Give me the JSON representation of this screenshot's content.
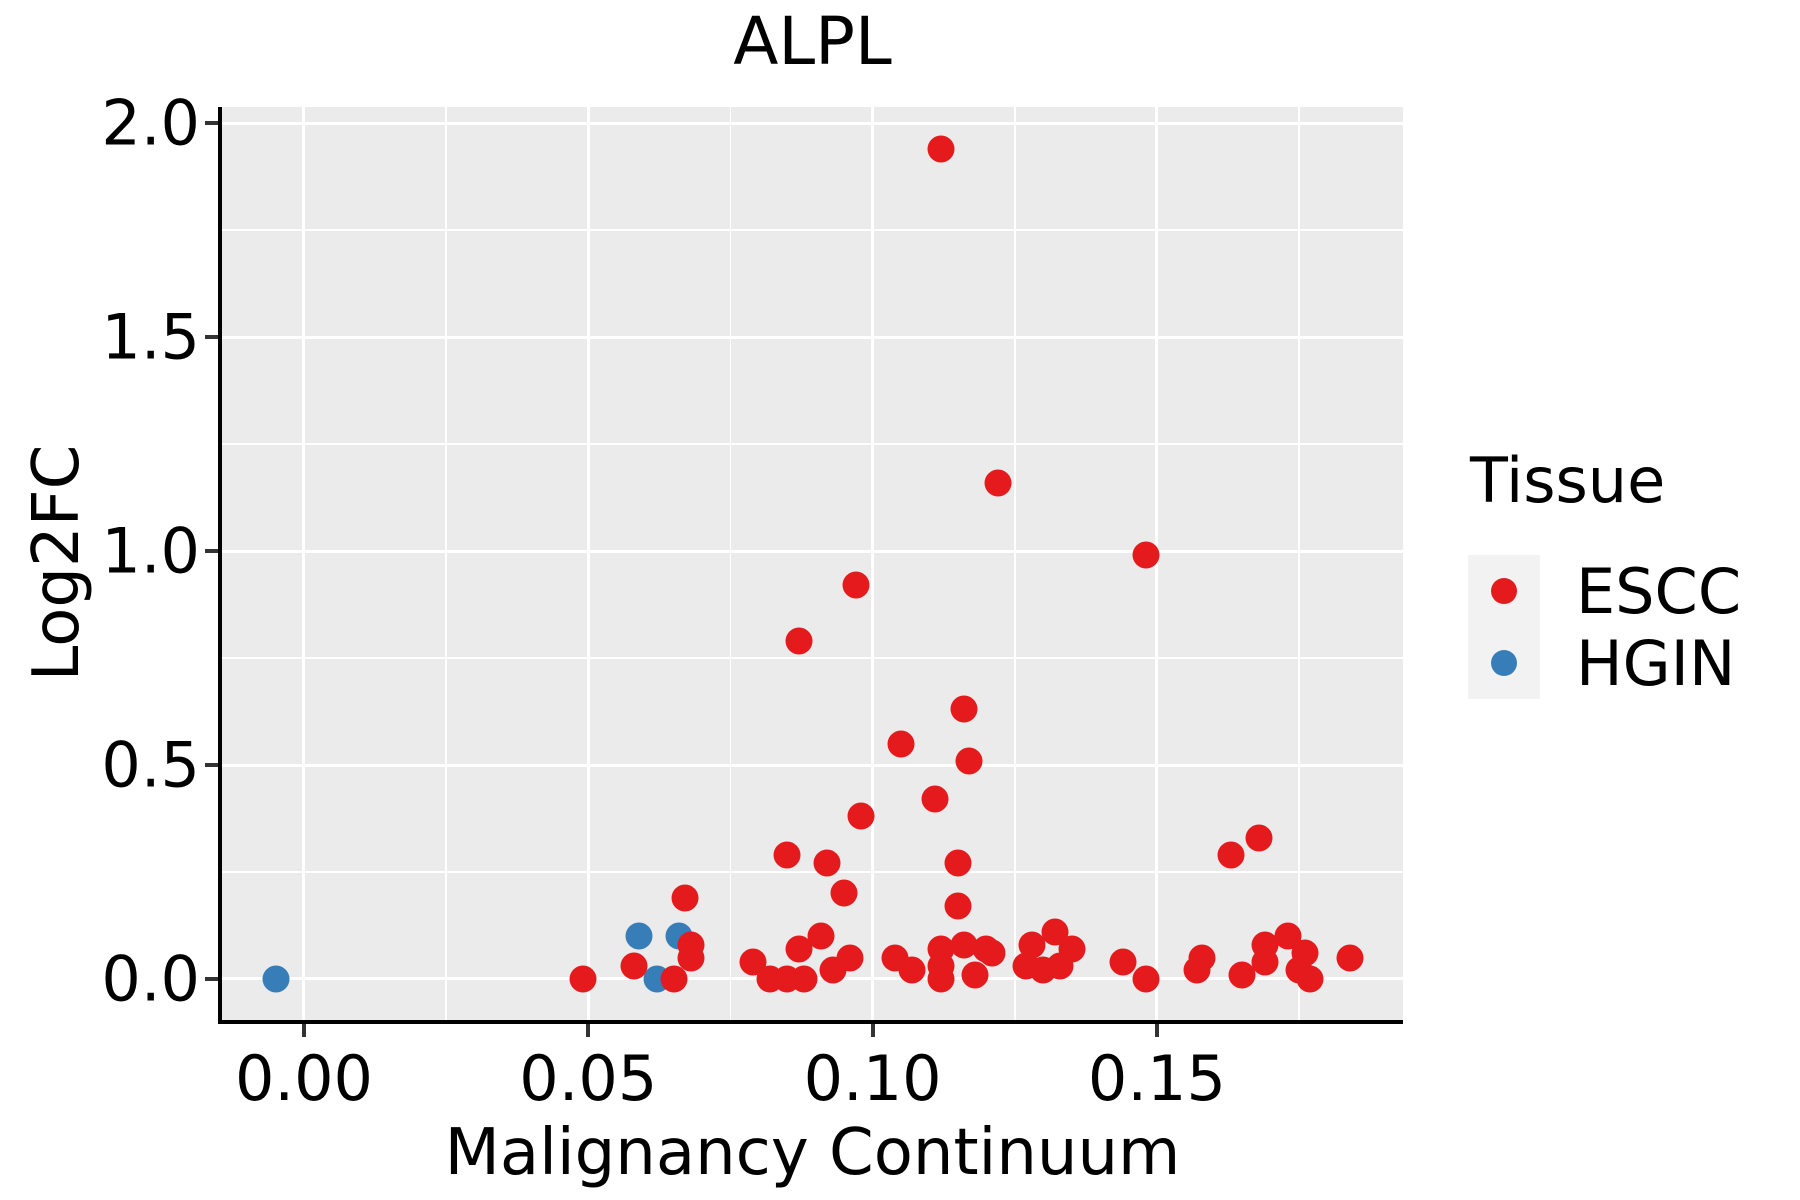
{
  "title": "ALPL",
  "legend": {
    "title": "Tissue",
    "entries": [
      {
        "label": "ESCC",
        "color": "#E41A1C"
      },
      {
        "label": "HGIN",
        "color": "#377EB8"
      }
    ]
  },
  "colors": {
    "escc_red": "#E41A1C",
    "hgin_blue": "#377EB8",
    "panel_background": "#EBEBEB",
    "gridline": "#FFFFFF",
    "axis": "#000000",
    "legend_key_background": "#F2F2F2"
  },
  "chart_data": {
    "type": "scatter",
    "title": "ALPL",
    "xlabel": "Malignancy Continuum",
    "ylabel": "Log2FC",
    "grid": true,
    "legend_position": "right",
    "xlim": [
      -0.01442,
      0.19328
    ],
    "ylim": [
      -0.0958,
      2.0374
    ],
    "x_ticks": [
      0.0,
      0.05,
      0.1,
      0.15
    ],
    "x_tick_labels": [
      "0.00",
      "0.05",
      "0.10",
      "0.15"
    ],
    "y_ticks": [
      0.0,
      0.5,
      1.0,
      1.5,
      2.0
    ],
    "y_tick_labels": [
      "0.0",
      "0.5",
      "1.0",
      "1.5",
      "2.0"
    ],
    "x_minor_ticks": [
      0.025,
      0.075,
      0.125,
      0.175
    ],
    "y_minor_ticks": [
      0.25,
      0.75,
      1.25,
      1.75
    ],
    "series": [
      {
        "name": "ESCC",
        "color": "#E41A1C",
        "points": [
          [
            0.049,
            0.0
          ],
          [
            0.058,
            0.03
          ],
          [
            0.065,
            0.0
          ],
          [
            0.067,
            0.19
          ],
          [
            0.068,
            0.08
          ],
          [
            0.068,
            0.05
          ],
          [
            0.079,
            0.04
          ],
          [
            0.082,
            0.0
          ],
          [
            0.085,
            0.0
          ],
          [
            0.085,
            0.29
          ],
          [
            0.087,
            0.07
          ],
          [
            0.087,
            0.79
          ],
          [
            0.088,
            0.0
          ],
          [
            0.091,
            0.1
          ],
          [
            0.092,
            0.27
          ],
          [
            0.093,
            0.02
          ],
          [
            0.095,
            0.2
          ],
          [
            0.096,
            0.05
          ],
          [
            0.097,
            0.92
          ],
          [
            0.098,
            0.38
          ],
          [
            0.104,
            0.05
          ],
          [
            0.105,
            0.55
          ],
          [
            0.107,
            0.02
          ],
          [
            0.111,
            0.42
          ],
          [
            0.112,
            1.94
          ],
          [
            0.112,
            0.07
          ],
          [
            0.112,
            0.03
          ],
          [
            0.112,
            0.0
          ],
          [
            0.115,
            0.17
          ],
          [
            0.115,
            0.27
          ],
          [
            0.116,
            0.63
          ],
          [
            0.116,
            0.08
          ],
          [
            0.117,
            0.51
          ],
          [
            0.118,
            0.01
          ],
          [
            0.12,
            0.07
          ],
          [
            0.121,
            0.06
          ],
          [
            0.122,
            1.16
          ],
          [
            0.127,
            0.03
          ],
          [
            0.128,
            0.08
          ],
          [
            0.13,
            0.02
          ],
          [
            0.132,
            0.11
          ],
          [
            0.133,
            0.03
          ],
          [
            0.135,
            0.07
          ],
          [
            0.144,
            0.04
          ],
          [
            0.148,
            0.99
          ],
          [
            0.148,
            0.0
          ],
          [
            0.157,
            0.02
          ],
          [
            0.158,
            0.05
          ],
          [
            0.163,
            0.29
          ],
          [
            0.165,
            0.01
          ],
          [
            0.168,
            0.33
          ],
          [
            0.169,
            0.04
          ],
          [
            0.169,
            0.08
          ],
          [
            0.173,
            0.1
          ],
          [
            0.175,
            0.02
          ],
          [
            0.176,
            0.06
          ],
          [
            0.177,
            0.0
          ],
          [
            0.184,
            0.05
          ]
        ]
      },
      {
        "name": "HGIN",
        "color": "#377EB8",
        "points": [
          [
            -0.005,
            0.0
          ],
          [
            0.059,
            0.1
          ],
          [
            0.062,
            0.0
          ],
          [
            0.066,
            0.1
          ]
        ]
      }
    ]
  }
}
